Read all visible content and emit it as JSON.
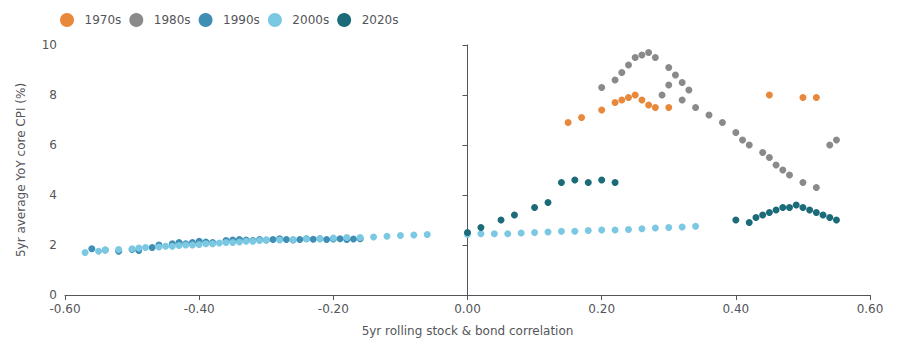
{
  "chart_data": {
    "type": "scatter",
    "xlabel": "5yr rolling stock & bond correlation",
    "ylabel": "5yr average YoY core CPI (%)",
    "xlim": [
      -0.6,
      0.6
    ],
    "ylim": [
      0,
      10
    ],
    "xticks": [
      {
        "value": -0.6,
        "label": "-0.60"
      },
      {
        "value": -0.4,
        "label": "-0.40"
      },
      {
        "value": -0.2,
        "label": "-0.20"
      },
      {
        "value": 0.0,
        "label": "0.00"
      },
      {
        "value": 0.2,
        "label": "0.20"
      },
      {
        "value": 0.4,
        "label": "0.40"
      },
      {
        "value": 0.6,
        "label": "0.60"
      }
    ],
    "yticks": [
      0,
      2,
      4,
      6,
      8,
      10
    ],
    "grid": false,
    "legend": "upper left",
    "series": [
      {
        "name": "1970s",
        "color": "#E8883A",
        "x": [
          0.15,
          0.17,
          0.2,
          0.22,
          0.23,
          0.24,
          0.25,
          0.26,
          0.27,
          0.28,
          0.3,
          0.45,
          0.5,
          0.52
        ],
        "values": [
          6.9,
          7.1,
          7.4,
          7.7,
          7.8,
          7.9,
          8.0,
          7.8,
          7.6,
          7.5,
          7.5,
          8.0,
          7.9,
          7.9
        ]
      },
      {
        "name": "1980s",
        "color": "#8A8A8A",
        "x": [
          0.2,
          0.22,
          0.23,
          0.24,
          0.25,
          0.26,
          0.27,
          0.28,
          0.3,
          0.31,
          0.32,
          0.33,
          0.3,
          0.29,
          0.32,
          0.34,
          0.36,
          0.38,
          0.4,
          0.41,
          0.42,
          0.44,
          0.45,
          0.46,
          0.47,
          0.48,
          0.5,
          0.52,
          0.54,
          0.55
        ],
        "values": [
          8.3,
          8.6,
          8.9,
          9.2,
          9.5,
          9.6,
          9.7,
          9.5,
          9.1,
          8.8,
          8.5,
          8.2,
          8.4,
          8.0,
          7.8,
          7.5,
          7.2,
          6.9,
          6.5,
          6.2,
          6.0,
          5.7,
          5.5,
          5.2,
          5.0,
          4.8,
          4.5,
          4.3,
          6.0,
          6.2
        ]
      },
      {
        "name": "1990s",
        "color": "#3F8FB5",
        "x": [
          -0.56,
          -0.54,
          -0.52,
          -0.5,
          -0.49,
          -0.47,
          -0.46,
          -0.44,
          -0.43,
          -0.42,
          -0.41,
          -0.4,
          -0.39,
          -0.38,
          -0.36,
          -0.35,
          -0.34,
          -0.33,
          -0.32,
          -0.31,
          -0.3,
          -0.29,
          -0.28,
          -0.27,
          -0.26,
          -0.25,
          -0.24,
          -0.23,
          -0.22,
          -0.21,
          -0.2,
          -0.19,
          -0.18,
          -0.17,
          -0.16
        ],
        "values": [
          1.85,
          1.8,
          1.75,
          1.82,
          1.78,
          1.9,
          2.0,
          2.05,
          2.1,
          2.05,
          2.1,
          2.15,
          2.12,
          2.1,
          2.18,
          2.2,
          2.22,
          2.2,
          2.18,
          2.22,
          2.2,
          2.22,
          2.25,
          2.22,
          2.2,
          2.22,
          2.25,
          2.23,
          2.25,
          2.22,
          2.24,
          2.25,
          2.22,
          2.24,
          2.25
        ]
      },
      {
        "name": "2000s",
        "color": "#7BC8E2",
        "x": [
          -0.57,
          -0.55,
          -0.54,
          -0.52,
          -0.5,
          -0.49,
          -0.48,
          -0.46,
          -0.45,
          -0.44,
          -0.43,
          -0.42,
          -0.41,
          -0.4,
          -0.39,
          -0.38,
          -0.37,
          -0.36,
          -0.35,
          -0.34,
          -0.33,
          -0.32,
          -0.31,
          -0.3,
          -0.28,
          -0.26,
          -0.24,
          -0.22,
          -0.2,
          -0.18,
          -0.16,
          -0.14,
          -0.12,
          -0.1,
          -0.08,
          -0.06,
          0.0,
          0.02,
          0.04,
          0.06,
          0.08,
          0.1,
          0.12,
          0.14,
          0.16,
          0.18,
          0.2,
          0.22,
          0.24,
          0.26,
          0.28,
          0.3,
          0.32,
          0.34
        ],
        "values": [
          1.7,
          1.75,
          1.8,
          1.82,
          1.85,
          1.88,
          1.9,
          1.92,
          1.95,
          1.95,
          1.98,
          2.0,
          2.0,
          2.02,
          2.05,
          2.05,
          2.08,
          2.1,
          2.1,
          2.12,
          2.15,
          2.15,
          2.18,
          2.2,
          2.2,
          2.22,
          2.25,
          2.25,
          2.28,
          2.3,
          2.3,
          2.32,
          2.35,
          2.38,
          2.4,
          2.42,
          2.42,
          2.45,
          2.45,
          2.45,
          2.48,
          2.5,
          2.52,
          2.55,
          2.55,
          2.58,
          2.6,
          2.6,
          2.62,
          2.65,
          2.68,
          2.7,
          2.72,
          2.75
        ]
      },
      {
        "name": "2020s",
        "color": "#1B6B78",
        "x": [
          0.0,
          0.02,
          0.05,
          0.07,
          0.1,
          0.12,
          0.14,
          0.16,
          0.18,
          0.2,
          0.22,
          0.4,
          0.42,
          0.43,
          0.44,
          0.45,
          0.46,
          0.47,
          0.48,
          0.49,
          0.5,
          0.51,
          0.52,
          0.53,
          0.54,
          0.55
        ],
        "values": [
          2.5,
          2.7,
          3.0,
          3.2,
          3.5,
          3.7,
          4.5,
          4.6,
          4.5,
          4.6,
          4.5,
          3.0,
          2.9,
          3.1,
          3.2,
          3.3,
          3.4,
          3.5,
          3.5,
          3.6,
          3.5,
          3.4,
          3.3,
          3.2,
          3.1,
          3.0
        ]
      }
    ]
  }
}
